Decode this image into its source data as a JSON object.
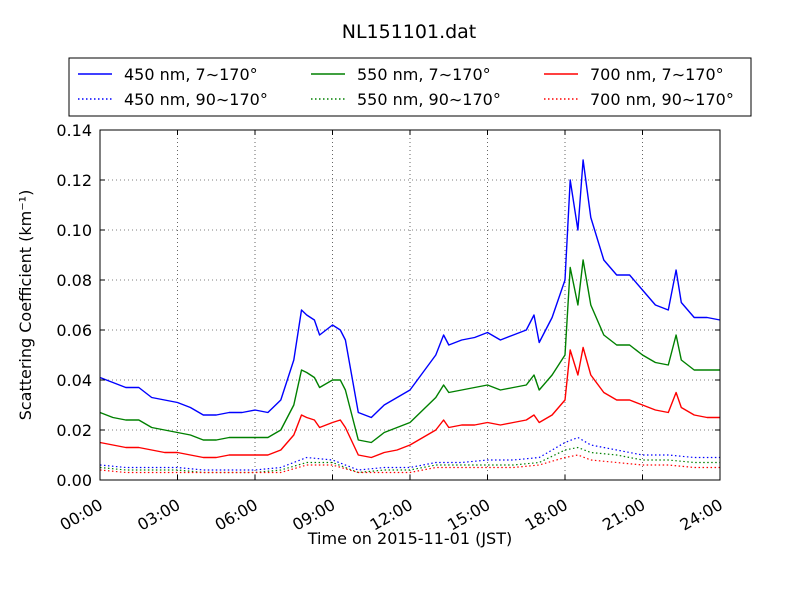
{
  "chart_data": {
    "type": "line",
    "title": "NL151101.dat",
    "xlabel": "Time on 2015-11-01 (JST)",
    "ylabel": "Scattering Coefficient (km⁻¹)",
    "x_unit": "hour",
    "xlim": [
      0,
      24
    ],
    "ylim": [
      0,
      0.14
    ],
    "grid": true,
    "legend_position": "top",
    "xticks": [
      {
        "value": 0,
        "label": "00:00"
      },
      {
        "value": 3,
        "label": "03:00"
      },
      {
        "value": 6,
        "label": "06:00"
      },
      {
        "value": 9,
        "label": "09:00"
      },
      {
        "value": 12,
        "label": "12:00"
      },
      {
        "value": 15,
        "label": "15:00"
      },
      {
        "value": 18,
        "label": "18:00"
      },
      {
        "value": 21,
        "label": "21:00"
      },
      {
        "value": 24,
        "label": "24:00"
      }
    ],
    "yticks": [
      {
        "value": 0,
        "label": "0.00"
      },
      {
        "value": 0.02,
        "label": "0.02"
      },
      {
        "value": 0.04,
        "label": "0.04"
      },
      {
        "value": 0.06,
        "label": "0.06"
      },
      {
        "value": 0.08,
        "label": "0.08"
      },
      {
        "value": 0.1,
        "label": "0.10"
      },
      {
        "value": 0.12,
        "label": "0.12"
      },
      {
        "value": 0.14,
        "label": "0.14"
      }
    ],
    "series": [
      {
        "name": "450 nm, 7∼170°",
        "color": "#0000ff",
        "style": "solid",
        "x": [
          0,
          0.5,
          1,
          1.5,
          2,
          2.5,
          3,
          3.5,
          4,
          4.5,
          5,
          5.5,
          6,
          6.5,
          7,
          7.5,
          7.8,
          8,
          8.3,
          8.5,
          9,
          9.3,
          9.5,
          10,
          10.5,
          11,
          11.5,
          12,
          12.5,
          13,
          13.3,
          13.5,
          14,
          14.5,
          15,
          15.5,
          16,
          16.5,
          16.8,
          17,
          17.5,
          18,
          18.2,
          18.5,
          18.7,
          19,
          19.5,
          20,
          20.5,
          21,
          21.5,
          22,
          22.3,
          22.5,
          23,
          23.5,
          24
        ],
        "y": [
          0.041,
          0.039,
          0.037,
          0.037,
          0.033,
          0.032,
          0.031,
          0.029,
          0.026,
          0.026,
          0.027,
          0.027,
          0.028,
          0.027,
          0.032,
          0.048,
          0.068,
          0.066,
          0.064,
          0.058,
          0.062,
          0.06,
          0.056,
          0.027,
          0.025,
          0.03,
          0.033,
          0.036,
          0.043,
          0.05,
          0.058,
          0.054,
          0.056,
          0.057,
          0.059,
          0.056,
          0.058,
          0.06,
          0.066,
          0.055,
          0.065,
          0.08,
          0.12,
          0.1,
          0.128,
          0.105,
          0.088,
          0.082,
          0.082,
          0.076,
          0.07,
          0.068,
          0.084,
          0.071,
          0.065,
          0.065,
          0.064
        ]
      },
      {
        "name": "550 nm, 7∼170°",
        "color": "#008000",
        "style": "solid",
        "x": [
          0,
          0.5,
          1,
          1.5,
          2,
          2.5,
          3,
          3.5,
          4,
          4.5,
          5,
          5.5,
          6,
          6.5,
          7,
          7.5,
          7.8,
          8,
          8.3,
          8.5,
          9,
          9.3,
          9.5,
          10,
          10.5,
          11,
          11.5,
          12,
          12.5,
          13,
          13.3,
          13.5,
          14,
          14.5,
          15,
          15.5,
          16,
          16.5,
          16.8,
          17,
          17.5,
          18,
          18.2,
          18.5,
          18.7,
          19,
          19.5,
          20,
          20.5,
          21,
          21.5,
          22,
          22.3,
          22.5,
          23,
          23.5,
          24
        ],
        "y": [
          0.027,
          0.025,
          0.024,
          0.024,
          0.021,
          0.02,
          0.019,
          0.018,
          0.016,
          0.016,
          0.017,
          0.017,
          0.017,
          0.017,
          0.02,
          0.03,
          0.044,
          0.043,
          0.041,
          0.037,
          0.04,
          0.04,
          0.036,
          0.016,
          0.015,
          0.019,
          0.021,
          0.023,
          0.028,
          0.033,
          0.038,
          0.035,
          0.036,
          0.037,
          0.038,
          0.036,
          0.037,
          0.038,
          0.042,
          0.036,
          0.042,
          0.05,
          0.085,
          0.07,
          0.088,
          0.07,
          0.058,
          0.054,
          0.054,
          0.05,
          0.047,
          0.046,
          0.058,
          0.048,
          0.044,
          0.044,
          0.044
        ]
      },
      {
        "name": "700 nm, 7∼170°",
        "color": "#ff0000",
        "style": "solid",
        "x": [
          0,
          0.5,
          1,
          1.5,
          2,
          2.5,
          3,
          3.5,
          4,
          4.5,
          5,
          5.5,
          6,
          6.5,
          7,
          7.5,
          7.8,
          8,
          8.3,
          8.5,
          9,
          9.3,
          9.5,
          10,
          10.5,
          11,
          11.5,
          12,
          12.5,
          13,
          13.3,
          13.5,
          14,
          14.5,
          15,
          15.5,
          16,
          16.5,
          16.8,
          17,
          17.5,
          18,
          18.2,
          18.5,
          18.7,
          19,
          19.5,
          20,
          20.5,
          21,
          21.5,
          22,
          22.3,
          22.5,
          23,
          23.5,
          24
        ],
        "y": [
          0.015,
          0.014,
          0.013,
          0.013,
          0.012,
          0.011,
          0.011,
          0.01,
          0.009,
          0.009,
          0.01,
          0.01,
          0.01,
          0.01,
          0.012,
          0.018,
          0.026,
          0.025,
          0.024,
          0.021,
          0.023,
          0.024,
          0.021,
          0.01,
          0.009,
          0.011,
          0.012,
          0.014,
          0.017,
          0.02,
          0.024,
          0.021,
          0.022,
          0.022,
          0.023,
          0.022,
          0.023,
          0.024,
          0.026,
          0.023,
          0.026,
          0.032,
          0.052,
          0.042,
          0.053,
          0.042,
          0.035,
          0.032,
          0.032,
          0.03,
          0.028,
          0.027,
          0.035,
          0.029,
          0.026,
          0.025,
          0.025
        ]
      },
      {
        "name": "450 nm, 90∼170°",
        "color": "#0000ff",
        "style": "dotted",
        "x": [
          0,
          1,
          2,
          3,
          4,
          5,
          6,
          7,
          8,
          9,
          10,
          11,
          12,
          13,
          14,
          15,
          16,
          17,
          18,
          18.5,
          19,
          20,
          21,
          22,
          23,
          24
        ],
        "y": [
          0.006,
          0.005,
          0.005,
          0.005,
          0.004,
          0.004,
          0.004,
          0.005,
          0.009,
          0.008,
          0.004,
          0.005,
          0.005,
          0.007,
          0.007,
          0.008,
          0.008,
          0.009,
          0.015,
          0.017,
          0.014,
          0.012,
          0.01,
          0.01,
          0.009,
          0.009
        ]
      },
      {
        "name": "550 nm, 90∼170°",
        "color": "#008000",
        "style": "dotted",
        "x": [
          0,
          1,
          2,
          3,
          4,
          5,
          6,
          7,
          8,
          9,
          10,
          11,
          12,
          13,
          14,
          15,
          16,
          17,
          18,
          18.5,
          19,
          20,
          21,
          22,
          23,
          24
        ],
        "y": [
          0.005,
          0.004,
          0.004,
          0.004,
          0.003,
          0.003,
          0.003,
          0.004,
          0.007,
          0.007,
          0.003,
          0.004,
          0.004,
          0.006,
          0.006,
          0.006,
          0.006,
          0.007,
          0.012,
          0.013,
          0.011,
          0.01,
          0.008,
          0.008,
          0.007,
          0.007
        ]
      },
      {
        "name": "700 nm, 90∼170°",
        "color": "#ff0000",
        "style": "dotted",
        "x": [
          0,
          1,
          2,
          3,
          4,
          5,
          6,
          7,
          8,
          9,
          10,
          11,
          12,
          13,
          14,
          15,
          16,
          17,
          18,
          18.5,
          19,
          20,
          21,
          22,
          23,
          24
        ],
        "y": [
          0.004,
          0.003,
          0.003,
          0.003,
          0.003,
          0.003,
          0.003,
          0.003,
          0.006,
          0.006,
          0.003,
          0.003,
          0.003,
          0.005,
          0.005,
          0.005,
          0.005,
          0.006,
          0.009,
          0.01,
          0.008,
          0.007,
          0.006,
          0.006,
          0.005,
          0.005
        ]
      }
    ]
  }
}
